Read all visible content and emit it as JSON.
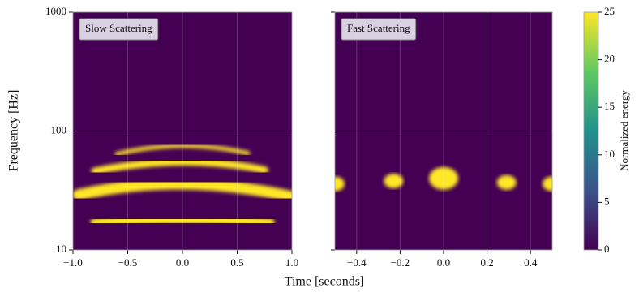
{
  "figure": {
    "xlabel": "Time [seconds]",
    "ylabel": "Frequency [Hz]",
    "colorbar": {
      "label": "Normalized energy",
      "clim": [
        0,
        25
      ],
      "ticks": [
        0,
        5,
        10,
        15,
        20,
        25
      ]
    }
  },
  "chart_data": [
    {
      "type": "arches",
      "title": "Slow Scattering",
      "xlim": [
        -1,
        1
      ],
      "ylim": [
        10,
        1000
      ],
      "log_y": true,
      "grid": true,
      "background": "#440154",
      "xticks": [
        {
          "value": -1,
          "label": "−1.0"
        },
        {
          "value": -0.5,
          "label": "−0.5"
        },
        {
          "value": 0,
          "label": "0.0"
        },
        {
          "value": 0.5,
          "label": "0.5"
        },
        {
          "value": 1,
          "label": "1.0"
        }
      ],
      "yticks": [
        10,
        100,
        1000
      ],
      "series": [
        {
          "color": "#fde725",
          "x": [
            -0.8,
            0,
            0.8
          ],
          "values": [
            17,
            18,
            17
          ]
        },
        {
          "color": "#fde725",
          "x": [
            -0.95,
            0,
            1
          ],
          "values": [
            29,
            36,
            28
          ]
        },
        {
          "color": "#fde725",
          "x": [
            -0.8,
            0,
            0.75
          ],
          "values": [
            46,
            55,
            47
          ]
        },
        {
          "color": "#fde725",
          "x": [
            -0.6,
            0,
            0.6
          ],
          "values": [
            64,
            75,
            65
          ]
        }
      ]
    },
    {
      "type": "blobs",
      "title": "Fast Scattering",
      "xlim": [
        -0.5,
        0.5
      ],
      "ylim": [
        10,
        1000
      ],
      "log_y": true,
      "grid": true,
      "background": "#440154",
      "xticks": [
        {
          "value": -0.4,
          "label": "−0.4"
        },
        {
          "value": -0.2,
          "label": "−0.2"
        },
        {
          "value": 0,
          "label": "0.0"
        },
        0.2,
        0.4
      ],
      "yticks": [
        10,
        100,
        1000
      ],
      "series": [
        {
          "color": "#fde725",
          "x": [
            -0.5,
            -0.23,
            0,
            0.29,
            0.5
          ],
          "values": [
            36,
            38,
            40,
            37,
            36
          ]
        }
      ]
    }
  ]
}
